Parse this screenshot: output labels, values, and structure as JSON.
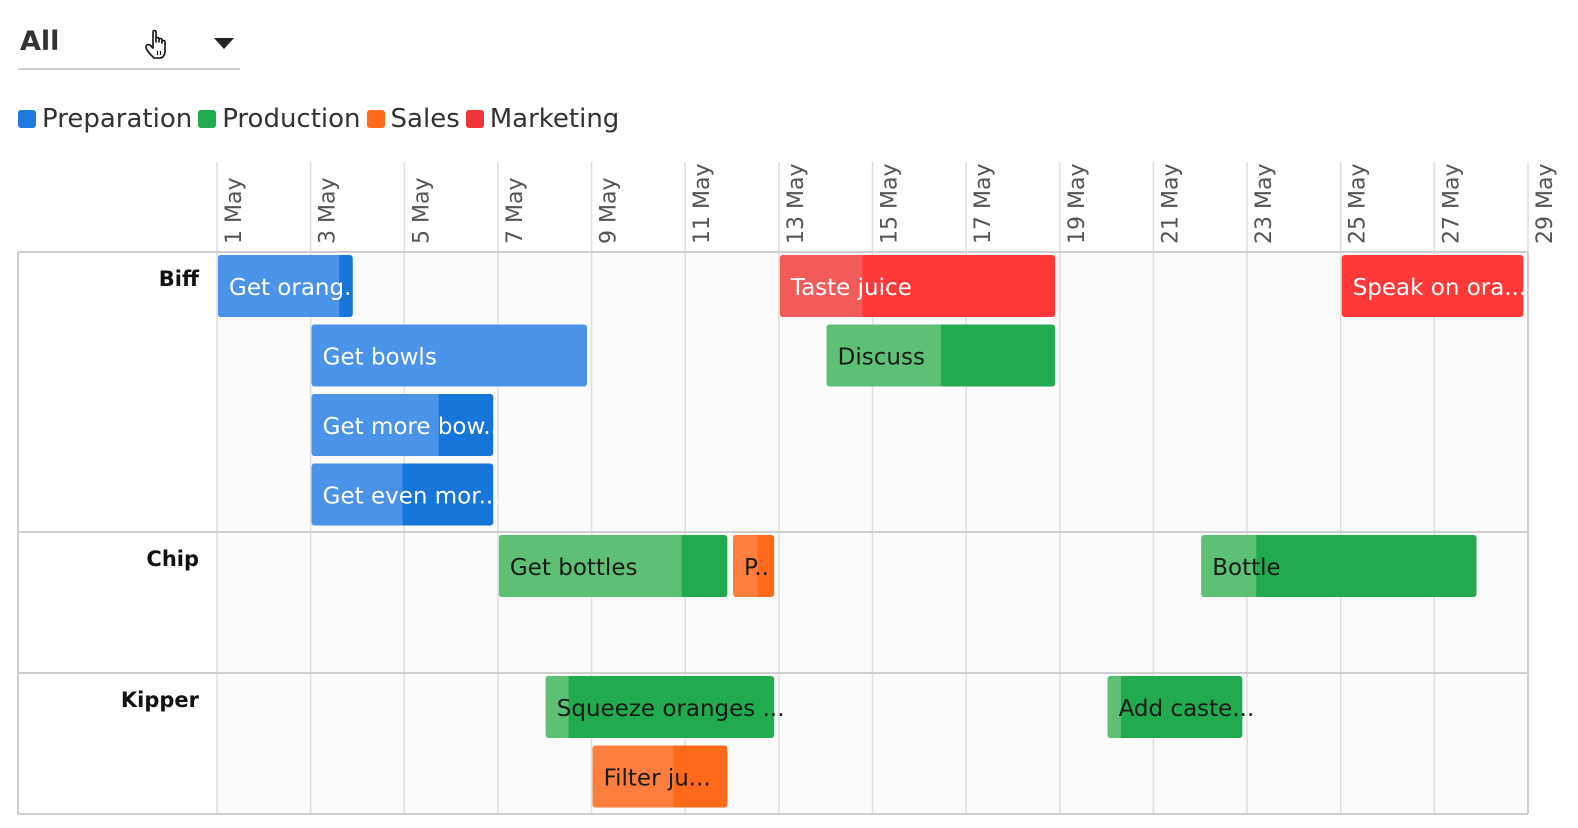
{
  "filter": {
    "value": "All"
  },
  "legend": [
    {
      "name": "Preparation",
      "color": "#2f7fe0"
    },
    {
      "name": "Production",
      "color": "#22aa4e"
    },
    {
      "name": "Sales",
      "color": "#ff6a1a"
    },
    {
      "name": "Marketing",
      "color": "#ef3535"
    }
  ],
  "chart_data": {
    "type": "gantt",
    "x_axis": {
      "start_day": 1,
      "end_day": 29,
      "tick_labels": [
        "1 May",
        "3 May",
        "5 May",
        "7 May",
        "9 May",
        "11 May",
        "13 May",
        "15 May",
        "17 May",
        "19 May",
        "21 May",
        "23 May",
        "25 May",
        "27 May",
        "29 May"
      ],
      "grid": true
    },
    "categories": {
      "Preparation": {
        "light": "#4a93e8",
        "dark": "#1575d8",
        "text": "#ffffff"
      },
      "Production": {
        "light": "#5ec075",
        "dark": "#22aa4e",
        "text": "#1a1a1a"
      },
      "Sales": {
        "light": "#ff7e3d",
        "dark": "#ff6a1a",
        "text": "#1a1a1a"
      },
      "Marketing": {
        "light": "#f35a5a",
        "dark": "#ff3838",
        "text": "#ffffff"
      }
    },
    "resources": [
      {
        "name": "Biff",
        "lanes": 4,
        "tasks": [
          {
            "label": "Get orang...",
            "category": "Preparation",
            "start": 1.0,
            "end": 3.9,
            "progress": 0.9,
            "lane": 0
          },
          {
            "label": "Get bowls",
            "category": "Preparation",
            "start": 3.0,
            "end": 8.9,
            "progress": 1.0,
            "lane": 1
          },
          {
            "label": "Get more bow...",
            "category": "Preparation",
            "start": 3.0,
            "end": 6.9,
            "progress": 0.7,
            "lane": 2
          },
          {
            "label": "Get even mor...",
            "category": "Preparation",
            "start": 3.0,
            "end": 6.9,
            "progress": 0.5,
            "lane": 3
          },
          {
            "label": "Taste juice",
            "category": "Marketing",
            "start": 13.0,
            "end": 18.9,
            "progress": 0.3,
            "lane": 0
          },
          {
            "label": "Discuss",
            "category": "Production",
            "start": 14.0,
            "end": 18.9,
            "progress": 0.5,
            "lane": 1
          },
          {
            "label": "Speak on ora...",
            "category": "Marketing",
            "start": 25.0,
            "end": 28.9,
            "progress": 0.0,
            "lane": 0
          }
        ]
      },
      {
        "name": "Chip",
        "lanes": 2,
        "tasks": [
          {
            "label": "Get bottles",
            "category": "Production",
            "start": 7.0,
            "end": 11.9,
            "progress": 0.8,
            "lane": 0
          },
          {
            "label": "P..",
            "category": "Sales",
            "start": 12.0,
            "end": 12.9,
            "progress": 0.6,
            "lane": 0
          },
          {
            "label": "Bottle",
            "category": "Production",
            "start": 22.0,
            "end": 27.9,
            "progress": 0.2,
            "lane": 0
          }
        ]
      },
      {
        "name": "Kipper",
        "lanes": 2,
        "tasks": [
          {
            "label": "Squeeze oranges ...",
            "category": "Production",
            "start": 8.0,
            "end": 12.9,
            "progress": 0.1,
            "lane": 0
          },
          {
            "label": "Add caste...",
            "category": "Production",
            "start": 20.0,
            "end": 22.9,
            "progress": 0.1,
            "lane": 0
          },
          {
            "label": "Filter ju...",
            "category": "Sales",
            "start": 9.0,
            "end": 11.9,
            "progress": 0.6,
            "lane": 1
          }
        ]
      }
    ]
  }
}
